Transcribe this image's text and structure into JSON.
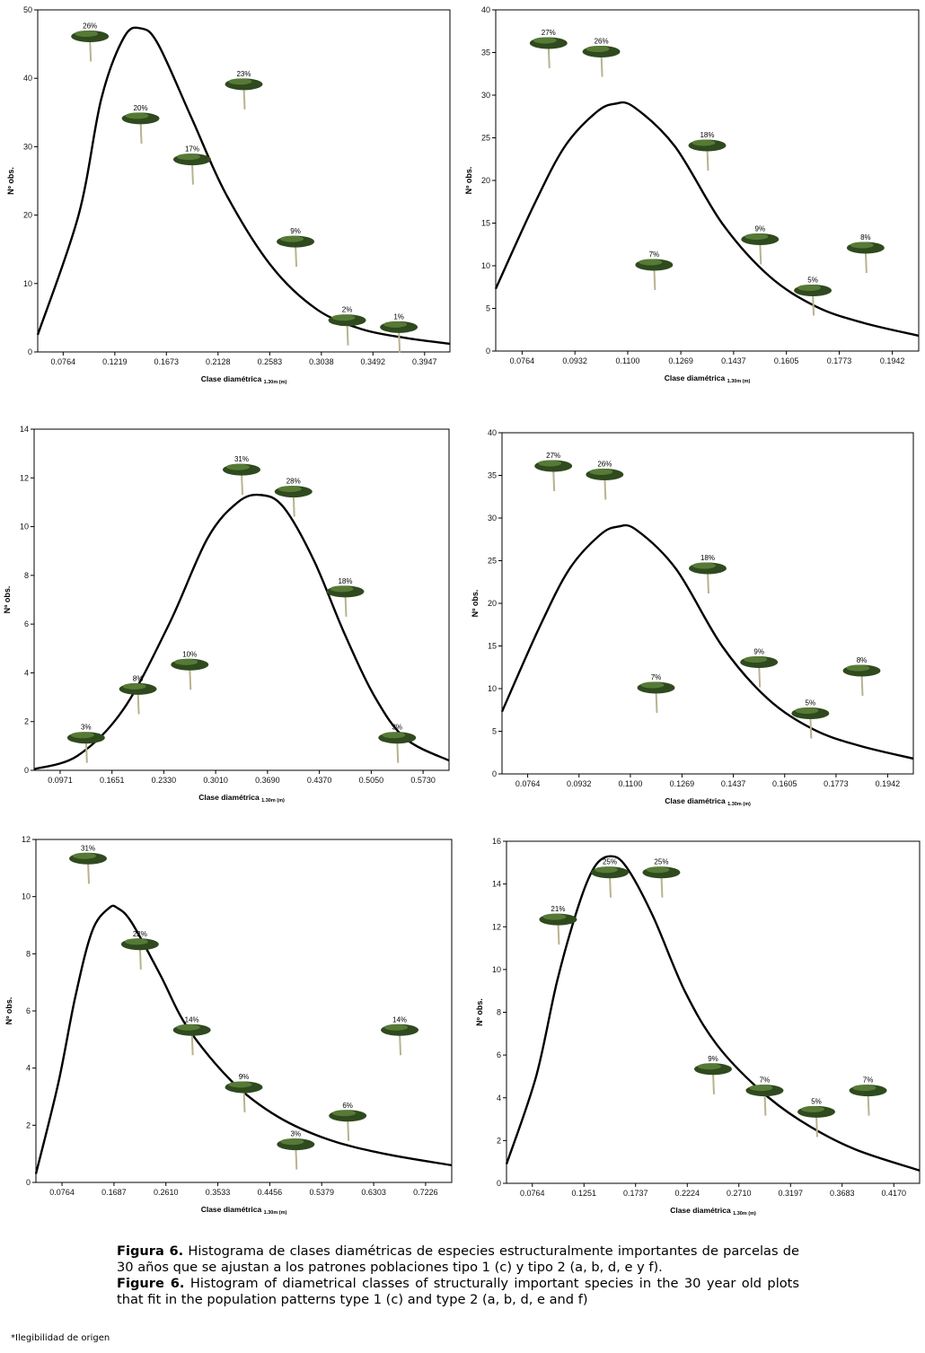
{
  "chart_data": [
    {
      "type": "bar",
      "note": "Histogram with fitted distribution curve; bars shown as tree pictograms labelled with percentages",
      "ylabel": "Nº obs.",
      "xlabel": "Clase diamétrica",
      "xlabel_sub": "1.30m (m)",
      "categories": [
        "0.0764",
        "0.1219",
        "0.1673",
        "0.2128",
        "0.2583",
        "0.3038",
        "0.3492",
        "0.3947"
      ],
      "x": [
        0.0764,
        0.1219,
        0.1673,
        0.2128,
        0.2583,
        0.3038,
        0.3492,
        0.3947
      ],
      "xlim": [
        0.054,
        0.417
      ],
      "ylim": [
        0,
        50
      ],
      "yticks": [
        "0",
        "10",
        "20",
        "30",
        "40",
        "50"
      ],
      "series": [
        {
          "name": "Nº obs.",
          "x": [
            0.1,
            0.1446,
            0.19,
            0.2355,
            0.281,
            0.3265,
            0.372
          ],
          "values": [
            46,
            34,
            28,
            39,
            16,
            4.5,
            3.5
          ],
          "labels": [
            "26%",
            "20%",
            "17%",
            "23%",
            "9%",
            "2%",
            "1%"
          ]
        }
      ],
      "curve": {
        "name": "fitted",
        "x": [
          0.054,
          0.09,
          0.11,
          0.13,
          0.1446,
          0.16,
          0.19,
          0.22,
          0.26,
          0.3,
          0.34,
          0.38,
          0.417
        ],
        "y": [
          2.5,
          20,
          37,
          46,
          47.3,
          45,
          34,
          23,
          12.5,
          6.2,
          3.3,
          2,
          1.2
        ]
      }
    },
    {
      "type": "bar",
      "note": "Histogram with fitted distribution curve",
      "ylabel": "Nº obs.",
      "xlabel": "Clase diamétrica",
      "xlabel_sub": "1.30m (m)",
      "categories": [
        "0.0764",
        "0.0932",
        "0.1100",
        "0.1269",
        "0.1437",
        "0.1605",
        "0.1773",
        "0.1942"
      ],
      "x": [
        0.0764,
        0.0932,
        0.11,
        0.1269,
        0.1437,
        0.1605,
        0.1773,
        0.1942
      ],
      "xlim": [
        0.068,
        0.2026
      ],
      "ylim": [
        0,
        40
      ],
      "yticks": [
        "0",
        "5",
        "10",
        "15",
        "20",
        "25",
        "30",
        "35",
        "40"
      ],
      "series": [
        {
          "name": "Nº obs.",
          "x": [
            0.0848,
            0.1016,
            0.1184,
            0.1353,
            0.1521,
            0.1689,
            0.1857
          ],
          "values": [
            36,
            35,
            10,
            24,
            13,
            7,
            12
          ],
          "labels": [
            "27%",
            "26%",
            "7%",
            "18%",
            "9%",
            "5%",
            "8%"
          ]
        }
      ],
      "curve": {
        "name": "fitted",
        "x": [
          0.068,
          0.08,
          0.09,
          0.1,
          0.106,
          0.112,
          0.125,
          0.14,
          0.155,
          0.17,
          0.185,
          0.2026
        ],
        "y": [
          7.3,
          17,
          24,
          28,
          29,
          28.6,
          24,
          15,
          8.8,
          5.2,
          3.3,
          1.8
        ]
      }
    },
    {
      "type": "bar",
      "note": "Histogram with fitted distribution curve",
      "ylabel": "Nº obs.",
      "xlabel": "Clase diamétrica",
      "xlabel_sub": "1.30m (m)",
      "categories": [
        "0.0971",
        "0.1651",
        "0.2330",
        "0.3010",
        "0.3690",
        "0.4370",
        "0.5050",
        "0.5730"
      ],
      "x": [
        0.0971,
        0.1651,
        0.233,
        0.301,
        0.369,
        0.437,
        0.505,
        0.573
      ],
      "xlim": [
        0.063,
        0.607
      ],
      "ylim": [
        0,
        14
      ],
      "yticks": [
        "0",
        "2",
        "4",
        "6",
        "8",
        "10",
        "12",
        "14"
      ],
      "series": [
        {
          "name": "Nº obs.",
          "x": [
            0.1311,
            0.1991,
            0.267,
            0.335,
            0.403,
            0.471,
            0.539
          ],
          "values": [
            1.3,
            3.3,
            4.3,
            12.3,
            11.4,
            7.3,
            1.3
          ],
          "labels": [
            "3%",
            "8%",
            "10%",
            "31%",
            "28%",
            "18%",
            "3%"
          ]
        }
      ],
      "curve": {
        "name": "fitted",
        "x": [
          0.063,
          0.12,
          0.18,
          0.24,
          0.29,
          0.33,
          0.36,
          0.39,
          0.43,
          0.47,
          0.51,
          0.55,
          0.607
        ],
        "y": [
          0.05,
          0.6,
          2.5,
          6,
          9.5,
          11,
          11.3,
          10.8,
          8.6,
          5.6,
          3,
          1.3,
          0.4
        ]
      }
    },
    {
      "type": "bar",
      "note": "Histogram with fitted distribution curve",
      "ylabel": "Nº obs.",
      "xlabel": "Clase diamétrica",
      "xlabel_sub": "1.30m (m)",
      "categories": [
        "0.0764",
        "0.0932",
        "0.1100",
        "0.1269",
        "0.1437",
        "0.1605",
        "0.1773",
        "0.1942"
      ],
      "x": [
        0.0764,
        0.0932,
        0.11,
        0.1269,
        0.1437,
        0.1605,
        0.1773,
        0.1942
      ],
      "xlim": [
        0.068,
        0.2026
      ],
      "ylim": [
        0,
        40
      ],
      "yticks": [
        "0",
        "5",
        "10",
        "15",
        "20",
        "25",
        "30",
        "35",
        "40"
      ],
      "series": [
        {
          "name": "Nº obs.",
          "x": [
            0.0848,
            0.1016,
            0.1184,
            0.1353,
            0.1521,
            0.1689,
            0.1857
          ],
          "values": [
            36,
            35,
            10,
            24,
            13,
            7,
            12
          ],
          "labels": [
            "27%",
            "26%",
            "7%",
            "18%",
            "9%",
            "5%",
            "8%"
          ]
        }
      ],
      "curve": {
        "name": "fitted",
        "x": [
          0.068,
          0.08,
          0.09,
          0.1,
          0.106,
          0.112,
          0.125,
          0.14,
          0.155,
          0.17,
          0.185,
          0.2026
        ],
        "y": [
          7.3,
          17,
          24,
          28,
          29,
          28.6,
          24,
          15,
          8.8,
          5.2,
          3.3,
          1.8
        ]
      }
    },
    {
      "type": "bar",
      "note": "Histogram with fitted distribution curve",
      "ylabel": "Nº obs.",
      "xlabel": "Clase diamétrica",
      "xlabel_sub": "1.30m (m)",
      "categories": [
        "0.0764",
        "0.1687",
        "0.2610",
        "0.3533",
        "0.4456",
        "0.5379",
        "0.6303",
        "0.7226"
      ],
      "x": [
        0.0764,
        0.1687,
        0.261,
        0.3533,
        0.4456,
        0.5379,
        0.6303,
        0.7226
      ],
      "xlim": [
        0.03,
        0.769
      ],
      "ylim": [
        0,
        12
      ],
      "yticks": [
        "0",
        "2",
        "4",
        "6",
        "8",
        "10",
        "12"
      ],
      "series": [
        {
          "name": "Nº obs.",
          "x": [
            0.1226,
            0.2149,
            0.3072,
            0.3995,
            0.4918,
            0.5841,
            0.6765
          ],
          "values": [
            11.3,
            8.3,
            5.3,
            3.3,
            1.3,
            2.3,
            5.3
          ],
          "labels": [
            "31%",
            "22%",
            "14%",
            "9%",
            "3%",
            "6%",
            "14%"
          ]
        }
      ],
      "curve": {
        "name": "fitted",
        "x": [
          0.03,
          0.07,
          0.1,
          0.13,
          0.16,
          0.175,
          0.2,
          0.25,
          0.3,
          0.38,
          0.46,
          0.55,
          0.65,
          0.769
        ],
        "y": [
          0.3,
          3.5,
          6.5,
          8.8,
          9.6,
          9.6,
          9.1,
          7.3,
          5.4,
          3.5,
          2.3,
          1.5,
          1,
          0.6
        ]
      }
    },
    {
      "type": "bar",
      "note": "Histogram with fitted distribution curve",
      "ylabel": "Nº obs.",
      "xlabel": "Clase diamétrica",
      "xlabel_sub": "1.30m (m)",
      "categories": [
        "0.0764",
        "0.1251",
        "0.1737",
        "0.2224",
        "0.2710",
        "0.3197",
        "0.3683",
        "0.4170"
      ],
      "x": [
        0.0764,
        0.1251,
        0.1737,
        0.2224,
        0.271,
        0.3197,
        0.3683,
        0.417
      ],
      "xlim": [
        0.0521,
        0.4413
      ],
      "ylim": [
        0,
        16
      ],
      "yticks": [
        "0",
        "2",
        "4",
        "6",
        "8",
        "10",
        "12",
        "14",
        "16"
      ],
      "series": [
        {
          "name": "Nº obs.",
          "x": [
            0.1007,
            0.1494,
            0.198,
            0.2467,
            0.2953,
            0.344,
            0.3927
          ],
          "values": [
            12.3,
            14.5,
            14.5,
            5.3,
            4.3,
            3.3,
            4.3
          ],
          "labels": [
            "21%",
            "25%",
            "25%",
            "9%",
            "7%",
            "5%",
            "7%"
          ]
        }
      ],
      "curve": {
        "name": "fitted",
        "x": [
          0.0521,
          0.08,
          0.1,
          0.12,
          0.135,
          0.15,
          0.165,
          0.19,
          0.22,
          0.25,
          0.29,
          0.33,
          0.38,
          0.4413
        ],
        "y": [
          0.9,
          5,
          9.5,
          13,
          14.8,
          15.3,
          14.8,
          12.5,
          9,
          6.5,
          4.4,
          2.9,
          1.6,
          0.6
        ]
      }
    }
  ],
  "caption": {
    "es_label": "Figura 6.",
    "es_text": "Histograma de clases diamétricas de especies estructuralmente importantes de parcelas de 30 años que se ajustan a los patrones poblaciones tipo 1 (c) y tipo 2 (a, b, d, e y f).",
    "en_label": "Figure 6.",
    "en_text": "Histogram of diametrical classes of structurally important species in the 30 year old plots that fit in the population patterns type 1 (c) and type 2 (a, b, d, e and f)"
  },
  "footnote": "*Ilegibilidad de origen"
}
